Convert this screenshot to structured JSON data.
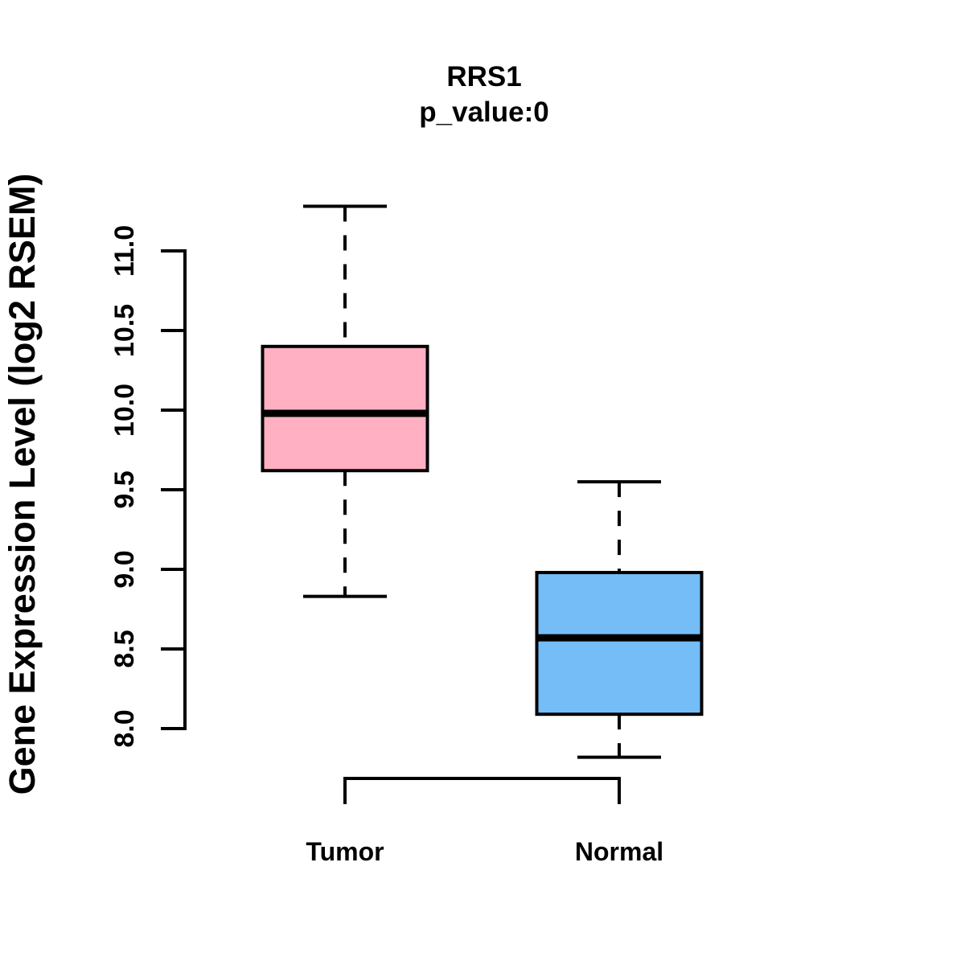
{
  "figure": {
    "title": "RRS1",
    "subtitle": "p_value:0",
    "ylabel": "Gene Expression Level (log2 RSEM)"
  },
  "chart_data": {
    "type": "boxplot",
    "title": "RRS1",
    "subtitle": "p_value:0",
    "p_value": 0,
    "xlabel": "",
    "ylabel": "Gene Expression Level (log2 RSEM)",
    "categories": [
      "Tumor",
      "Normal"
    ],
    "ylim": [
      8.0,
      11.0
    ],
    "y_ticks": [
      8.0,
      8.5,
      9.0,
      9.5,
      10.0,
      10.5,
      11.0
    ],
    "grid": false,
    "series": [
      {
        "name": "Tumor",
        "color": "#FFB0C3",
        "lower_whisker": 8.83,
        "q1": 9.62,
        "median": 9.98,
        "q3": 10.4,
        "upper_whisker": 11.28
      },
      {
        "name": "Normal",
        "color": "#74BDF7",
        "lower_whisker": 7.82,
        "q1": 8.09,
        "median": 8.57,
        "q3": 8.98,
        "upper_whisker": 9.55
      }
    ],
    "annotations": {
      "comparison_bracket_between": [
        "Tumor",
        "Normal"
      ]
    },
    "colors": {
      "box_border": "#000000",
      "median_line": "#000000",
      "whisker": "#000000",
      "axis": "#000000",
      "text": "#000000",
      "background": "#FFFFFF"
    }
  }
}
